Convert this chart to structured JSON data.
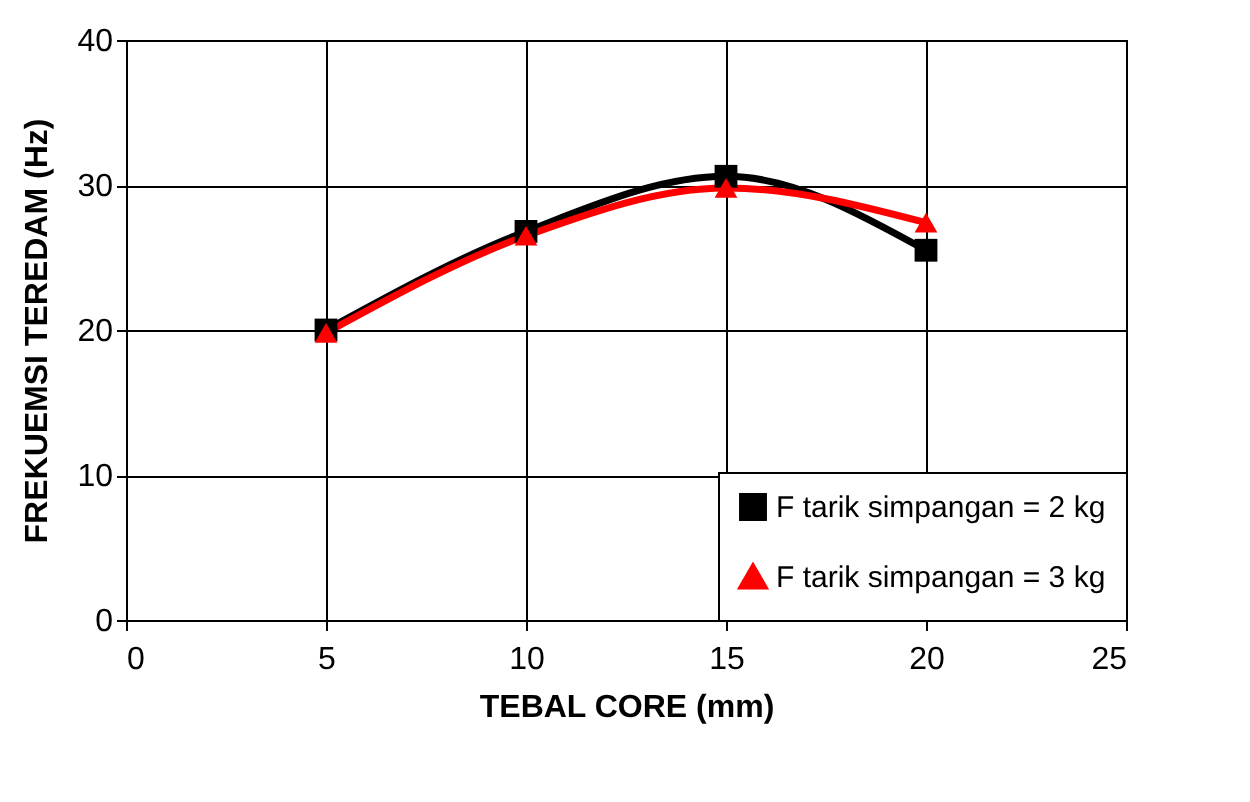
{
  "chart_data": {
    "type": "line",
    "xlabel": "TEBAL CORE (mm)",
    "ylabel": "FREKUEMSI TEREDAM (Hz)",
    "x": [
      5,
      10,
      15,
      20
    ],
    "series": [
      {
        "name": "F tarik simpangan = 2 kg",
        "color": "#000000",
        "marker": "square",
        "values": [
          20,
          26.8,
          30.6,
          25.5
        ]
      },
      {
        "name": "F tarik simpangan = 3 kg",
        "color": "#ff0000",
        "marker": "triangle",
        "values": [
          19.8,
          26.5,
          29.8,
          27.4
        ]
      }
    ],
    "xlim": [
      0,
      25
    ],
    "xticks": [
      0,
      5,
      10,
      15,
      20,
      25
    ],
    "ylim": [
      0,
      40
    ],
    "yticks": [
      0,
      10,
      20,
      30,
      40
    ],
    "grid": true,
    "legend": "bottom right",
    "line_style": "solid"
  }
}
